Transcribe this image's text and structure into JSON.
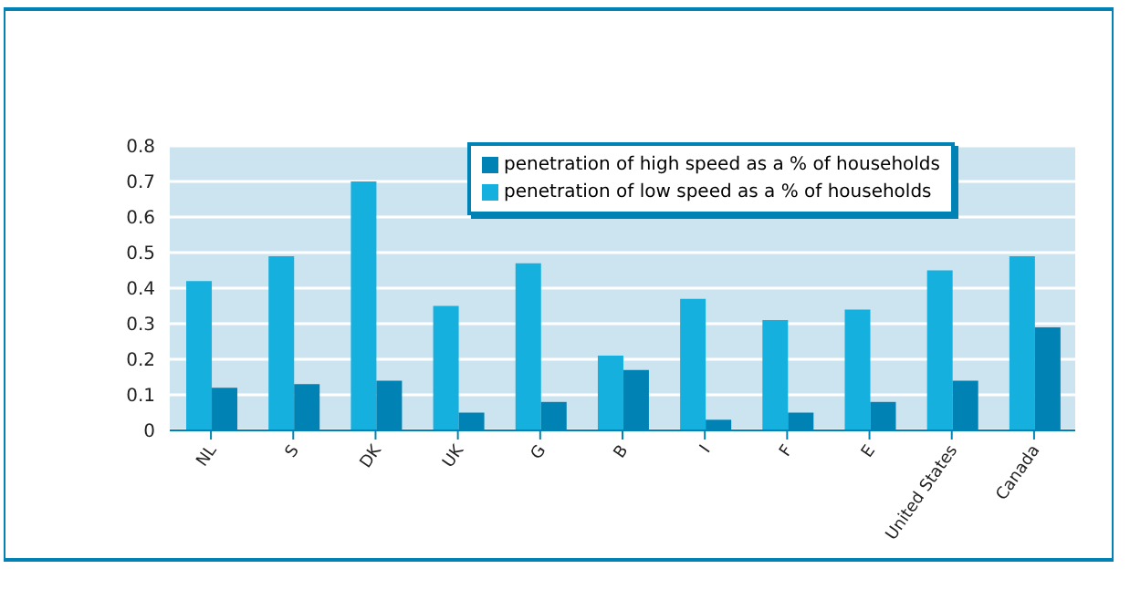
{
  "chart_data": {
    "type": "bar",
    "categories": [
      "NL",
      "S",
      "DK",
      "UK",
      "G",
      "B",
      "I",
      "F",
      "E",
      "United States",
      "Canada"
    ],
    "series": [
      {
        "name": "penetration of low speed as a % of households",
        "color": "#15b0de",
        "values": [
          0.42,
          0.49,
          0.7,
          0.35,
          0.47,
          0.21,
          0.37,
          0.31,
          0.34,
          0.45,
          0.49
        ]
      },
      {
        "name": "penetration of high speed as a % of households",
        "color": "#0083b4",
        "values": [
          0.12,
          0.13,
          0.14,
          0.05,
          0.08,
          0.17,
          0.03,
          0.05,
          0.08,
          0.14,
          0.29
        ]
      }
    ],
    "ylim": [
      0,
      0.8
    ],
    "yticks": [
      0,
      0.1,
      0.2,
      0.3,
      0.4,
      0.5,
      0.6,
      0.7,
      0.8
    ],
    "grid": "y",
    "legend": "top right"
  }
}
